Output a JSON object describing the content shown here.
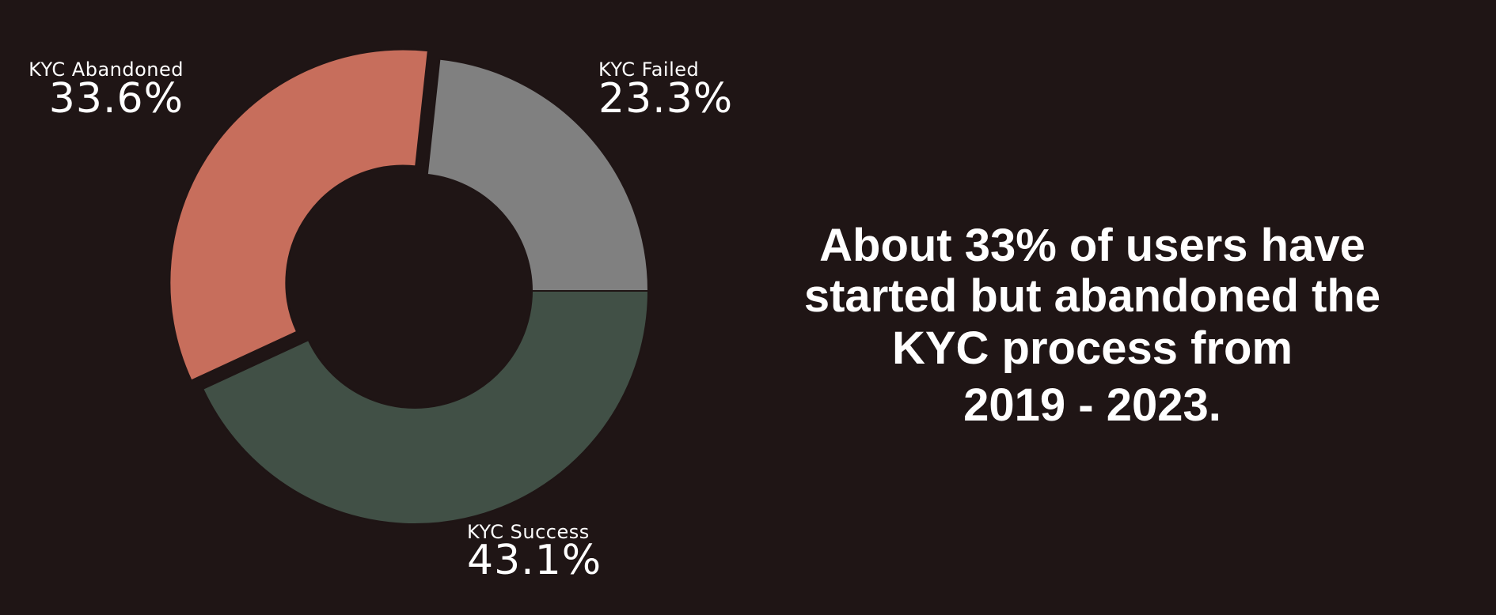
{
  "chart_data": {
    "type": "donut",
    "categories": [
      "KYC Failed",
      "KYC Abandoned",
      "KYC Success"
    ],
    "values": [
      23.3,
      33.6,
      43.1
    ],
    "value_labels": [
      "23.3%",
      "33.6%",
      "43.1%"
    ],
    "colors": [
      "#808080",
      "#c76e5c",
      "#415046"
    ],
    "explode": [
      false,
      true,
      false
    ],
    "annotation": [
      "About 33% of users have",
      "started but abandoned the",
      "KYC process from",
      "2019 - 2023."
    ]
  }
}
